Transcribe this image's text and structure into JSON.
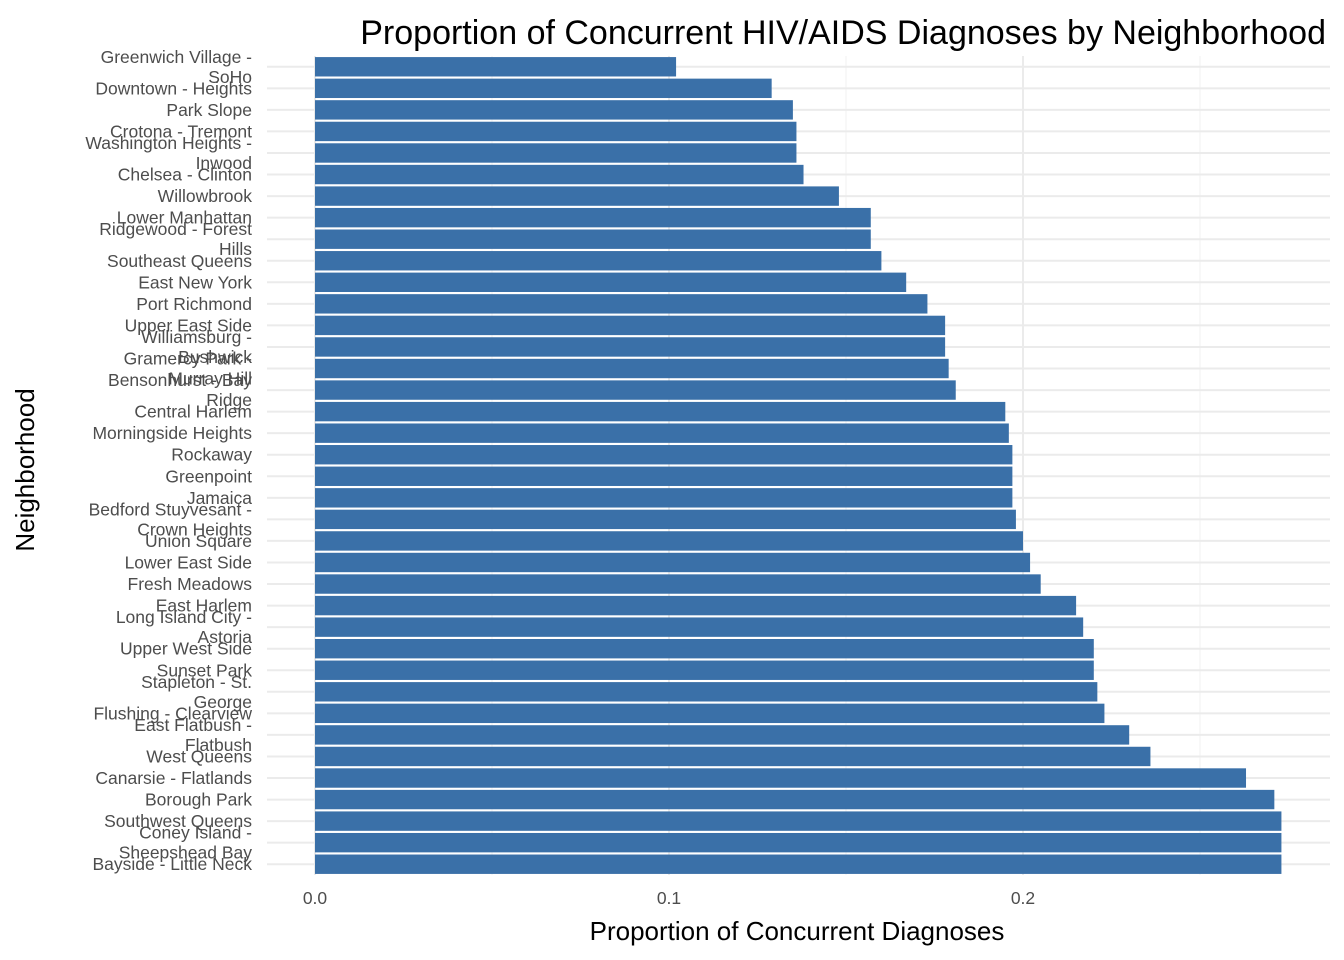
{
  "chart_data": {
    "type": "bar",
    "orientation": "horizontal",
    "title": "Proportion of Concurrent HIV/AIDS Diagnoses by Neighborhood",
    "xlabel": "Proportion of Concurrent Diagnoses",
    "ylabel": "Neighborhood",
    "xlim": [
      0,
      0.285
    ],
    "x_ticks": [
      0.0,
      0.1,
      0.2
    ],
    "x_tick_labels": [
      "0.0",
      "0.1",
      "0.2"
    ],
    "grid": true,
    "bar_color": "#3a70a8",
    "categories": [
      [
        "Greenwich Village -",
        "SoHo"
      ],
      [
        "Downtown - Heights"
      ],
      [
        "Park Slope"
      ],
      [
        "Crotona - Tremont"
      ],
      [
        "Washington Heights -",
        "Inwood"
      ],
      [
        "Chelsea - Clinton"
      ],
      [
        "Willowbrook"
      ],
      [
        "Lower Manhattan"
      ],
      [
        "Ridgewood - Forest",
        "Hills"
      ],
      [
        "Southeast Queens"
      ],
      [
        "East New York"
      ],
      [
        "Port Richmond"
      ],
      [
        "Upper East Side"
      ],
      [
        "Williamsburg -",
        "Bushwick"
      ],
      [
        "Gramercy Park -",
        "Murray Hill"
      ],
      [
        "Bensonhurst - Bay",
        "Ridge"
      ],
      [
        "Central Harlem"
      ],
      [
        "Morningside Heights"
      ],
      [
        "Rockaway"
      ],
      [
        "Greenpoint"
      ],
      [
        "Jamaica"
      ],
      [
        "Bedford Stuyvesant -",
        "Crown Heights"
      ],
      [
        "Union Square"
      ],
      [
        "Lower East Side"
      ],
      [
        "Fresh Meadows"
      ],
      [
        "East Harlem"
      ],
      [
        "Long Island City -",
        "Astoria"
      ],
      [
        "Upper West Side"
      ],
      [
        "Sunset Park"
      ],
      [
        "Stapleton - St.",
        "George"
      ],
      [
        "Flushing - Clearview"
      ],
      [
        "East Flatbush -",
        "Flatbush"
      ],
      [
        "West Queens"
      ],
      [
        "Canarsie - Flatlands"
      ],
      [
        "Borough Park"
      ],
      [
        "Southwest Queens"
      ],
      [
        "Coney Island -",
        "Sheepshead Bay"
      ],
      [
        "Bayside - Little Neck"
      ]
    ],
    "values": [
      0.102,
      0.129,
      0.135,
      0.136,
      0.136,
      0.138,
      0.148,
      0.157,
      0.157,
      0.16,
      0.167,
      0.173,
      0.178,
      0.178,
      0.179,
      0.181,
      0.195,
      0.196,
      0.197,
      0.197,
      0.197,
      0.198,
      0.2,
      0.202,
      0.205,
      0.215,
      0.217,
      0.22,
      0.22,
      0.221,
      0.223,
      0.23,
      0.236,
      0.263,
      0.271,
      0.273,
      0.273,
      0.273
    ]
  }
}
